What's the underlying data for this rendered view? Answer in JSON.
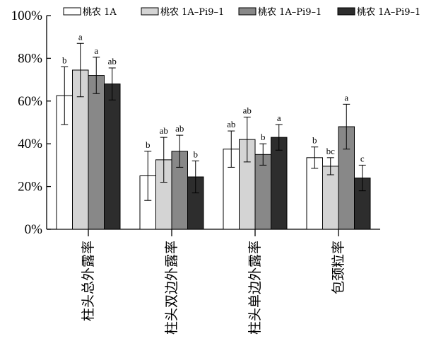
{
  "chart_data": {
    "type": "bar",
    "title": "",
    "xlabel": "",
    "ylabel": "",
    "ylim": [
      0,
      100
    ],
    "yticks": [
      "0%",
      "20%",
      "40%",
      "60%",
      "80%",
      "100%"
    ],
    "ytick_values": [
      0,
      20,
      40,
      60,
      80,
      100
    ],
    "categories": [
      "柱头总外露率",
      "柱头双边外露率",
      "柱头单边外露率",
      "包颈粒率"
    ],
    "legend_position": "top",
    "grid": false,
    "series": [
      {
        "name": "桃农 1A",
        "color": "#ffffff",
        "values": [
          62.5,
          25,
          37.5,
          33.5
        ],
        "errors": [
          13.5,
          11.5,
          8.5,
          5
        ],
        "letters": [
          "b",
          "b",
          "ab",
          "b"
        ]
      },
      {
        "name": "桃农 1A–Pi9–1",
        "color": "#d4d4d4",
        "values": [
          74.5,
          32.5,
          42,
          29.5
        ],
        "errors": [
          12.5,
          10.5,
          10.5,
          4
        ],
        "letters": [
          "a",
          "ab",
          "ab",
          "bc"
        ]
      },
      {
        "name": "桃农 1A–Pi9–1",
        "color": "#888888",
        "values": [
          72,
          36.5,
          35,
          48
        ],
        "errors": [
          8.5,
          7.5,
          5,
          10.5
        ],
        "letters": [
          "a",
          "ab",
          "b",
          "a"
        ]
      },
      {
        "name": "桃农 1A–Pi9–1",
        "color": "#2d2d2d",
        "values": [
          68,
          24.5,
          43,
          24
        ],
        "errors": [
          7.5,
          7.5,
          6,
          6
        ],
        "letters": [
          "ab",
          "b",
          "a",
          "c"
        ]
      }
    ]
  }
}
